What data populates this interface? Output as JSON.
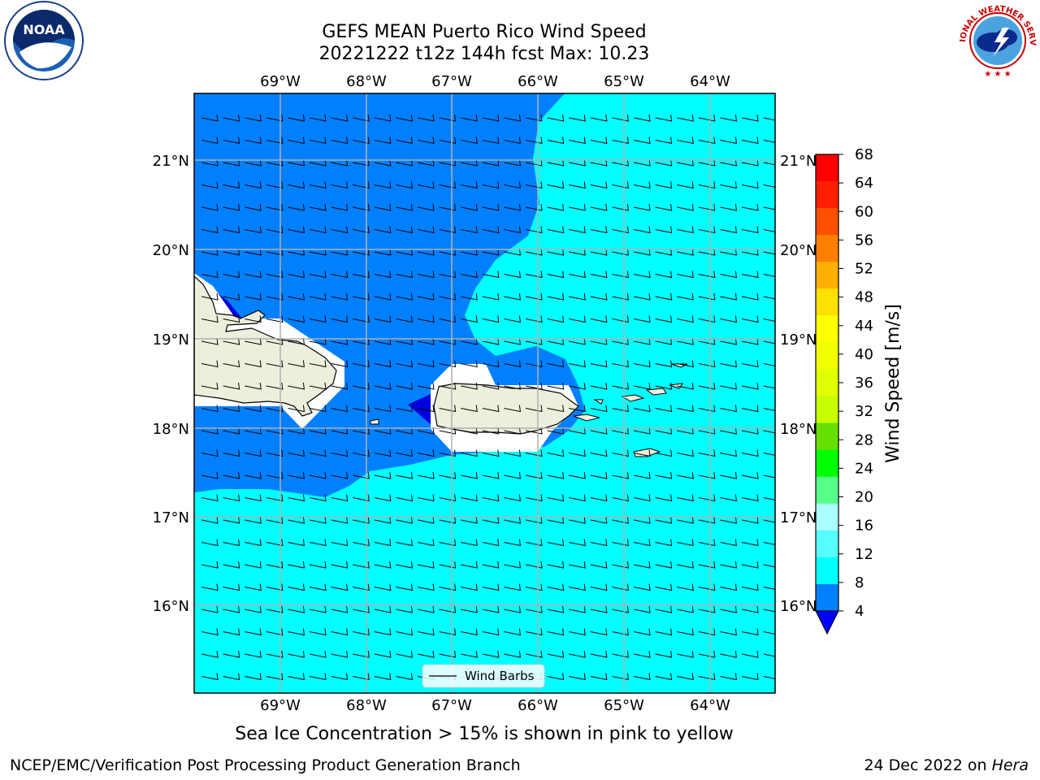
{
  "header": {
    "title_line1": "GEFS MEAN Puerto Rico Wind Speed",
    "title_line2": "20221222 t12z 144h fcst   Max: 10.23"
  },
  "logos": {
    "left": "noaa-logo",
    "left_text": "NOAA",
    "right": "nws-logo",
    "right_text": "NATIONAL WEATHER SERVICE"
  },
  "map": {
    "lon_labels": [
      "69°W",
      "68°W",
      "67°W",
      "66°W",
      "65°W",
      "64°W"
    ],
    "lat_labels": [
      "21°N",
      "20°N",
      "19°N",
      "18°N",
      "17°N",
      "16°N"
    ],
    "legend_label": "Wind Barbs",
    "colors": {
      "ocean_low": "#0080ff",
      "ocean_mid": "#00ffff",
      "land": "#eeeedd",
      "grid": "#b0b0b0"
    }
  },
  "colorbar": {
    "label": "Wind Speed [m/s]",
    "ticks": [
      "68",
      "64",
      "60",
      "56",
      "52",
      "48",
      "44",
      "40",
      "36",
      "32",
      "28",
      "24",
      "20",
      "16",
      "12",
      "8",
      "4"
    ],
    "colors": [
      "#ff0000",
      "#ff2000",
      "#ff5000",
      "#ff8000",
      "#ffb000",
      "#ffe000",
      "#ffff00",
      "#f0ff00",
      "#e0ff00",
      "#c8ff00",
      "#66e000",
      "#00ff00",
      "#55ff88",
      "#aaffff",
      "#55ffff",
      "#00ffff",
      "#0080ff"
    ],
    "under_color": "#0000ff"
  },
  "caption": "Sea Ice Concentration > 15% is shown in pink to yellow",
  "footer": {
    "left": "NCEP/EMC/Verification Post Processing Product Generation Branch",
    "right_prefix": "24 Dec 2022 on ",
    "right_host": "Hera"
  }
}
